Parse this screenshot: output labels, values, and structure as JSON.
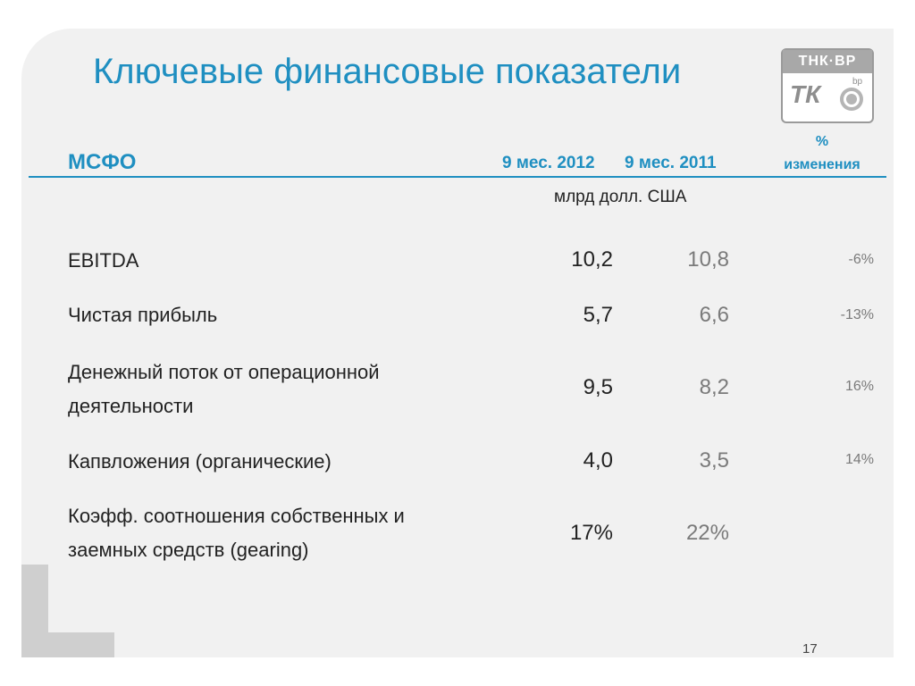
{
  "slide": {
    "title": "Ключевые финансовые показатели",
    "page_number": "17"
  },
  "logo": {
    "top_text": "ТНК·BP",
    "mark": "ТК",
    "bp": "bp"
  },
  "table": {
    "standard": "МСФО",
    "col1": "9 мес. 2012",
    "col2": "9 мес. 2011",
    "pct_header_sign": "%",
    "pct_header_word": "изменения",
    "units": "млрд долл. США",
    "rows": [
      {
        "label_line1": "EBITDA",
        "label_line2": "",
        "v1": "10,2",
        "v2": "10,8",
        "pct": "-6%"
      },
      {
        "label_line1": "Чистая прибыль",
        "label_line2": "",
        "v1": "5,7",
        "v2": "6,6",
        "pct": "-13%"
      },
      {
        "label_line1": "Денежный поток от операционной",
        "label_line2": "деятельности",
        "v1": "9,5",
        "v2": "8,2",
        "pct": "16%"
      },
      {
        "label_line1": "Капвложения (органические)",
        "label_line2": "",
        "v1": "4,0",
        "v2": "3,5",
        "pct": "14%"
      },
      {
        "label_line1": "Коэфф. соотношения собственных и",
        "label_line2": "заемных средств (gearing)",
        "v1": "17%",
        "v2": "22%",
        "pct": ""
      }
    ]
  },
  "colors": {
    "accent": "#1f8fc1",
    "panel": "#f1f1f1",
    "corner": "#cfcfcf"
  }
}
